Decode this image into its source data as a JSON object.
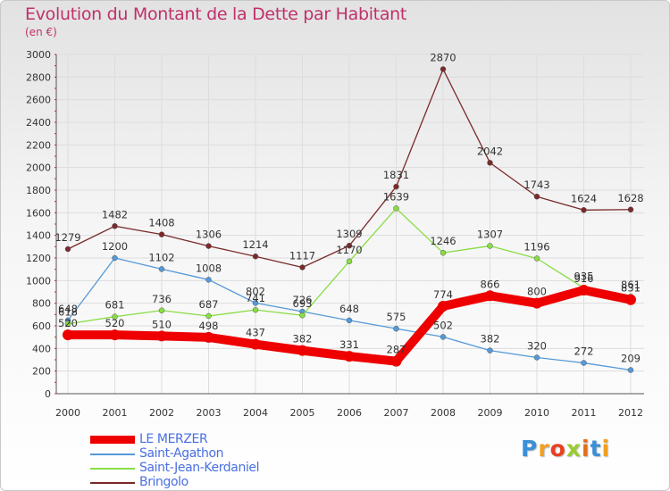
{
  "title": "Evolution du Montant de la Dette par Habitant",
  "subtitle": "(en €)",
  "brand": "Proxiti",
  "colors": {
    "title": "#c0306a",
    "axis_text": "#333333",
    "legend_text": "#4a6fe0",
    "grid": "#dddddd",
    "axis_ticks": "#e02020"
  },
  "chart_data": {
    "type": "line",
    "title": "Evolution du Montant de la Dette par Habitant",
    "subtitle": "(en €)",
    "xlabel": "",
    "ylabel": "",
    "ylim": [
      0,
      3000
    ],
    "yticks": [
      0,
      200,
      400,
      600,
      800,
      1000,
      1200,
      1400,
      1600,
      1800,
      2000,
      2200,
      2400,
      2600,
      2800,
      3000
    ],
    "grid": true,
    "legend_position": "bottom-left",
    "categories": [
      "2000",
      "2001",
      "2002",
      "2003",
      "2004",
      "2005",
      "2006",
      "2007",
      "2008",
      "2009",
      "2010",
      "2011",
      "2012"
    ],
    "series": [
      {
        "name": "LE MERZER",
        "color": "#ee0000",
        "thick": true,
        "values": [
          520,
          520,
          510,
          498,
          437,
          382,
          331,
          287,
          774,
          866,
          800,
          916,
          831
        ]
      },
      {
        "name": "Saint-Agathon",
        "color": "#5599d8",
        "thick": false,
        "values": [
          648,
          1200,
          1102,
          1008,
          802,
          726,
          648,
          575,
          502,
          382,
          320,
          272,
          209
        ]
      },
      {
        "name": "Saint-Jean-Kerdaniel",
        "color": "#88dd44",
        "thick": false,
        "values": [
          618,
          681,
          736,
          687,
          741,
          693,
          1170,
          1639,
          1246,
          1307,
          1196,
          935,
          861
        ]
      },
      {
        "name": "Bringolo",
        "color": "#7a2a2a",
        "thick": false,
        "values": [
          1279,
          1482,
          1408,
          1306,
          1214,
          1117,
          1309,
          1831,
          2870,
          2042,
          1743,
          1624,
          1628
        ]
      }
    ]
  }
}
